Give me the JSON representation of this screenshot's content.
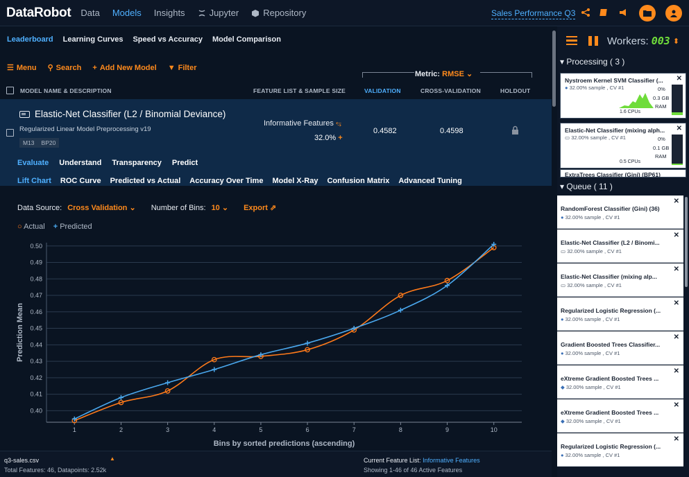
{
  "app": {
    "logo": "DataRobot",
    "project": "Sales Performance Q3"
  },
  "nav": [
    {
      "label": "Data",
      "active": false
    },
    {
      "label": "Models",
      "active": true
    },
    {
      "label": "Insights",
      "active": false
    },
    {
      "label": "Jupyter",
      "active": false
    },
    {
      "label": "Repository",
      "active": false
    }
  ],
  "subtabs": [
    "Leaderboard",
    "Learning Curves",
    "Speed vs Accuracy",
    "Model Comparison"
  ],
  "toolbar": {
    "menu": "Menu",
    "search": "Search",
    "add": "Add New Model",
    "filter": "Filter"
  },
  "metric": {
    "label": "Metric:",
    "value": "RMSE"
  },
  "columns": {
    "name": "MODEL NAME & DESCRIPTION",
    "features": "FEATURE LIST & SAMPLE SIZE",
    "validation": "VALIDATION",
    "cv": "CROSS-VALIDATION",
    "holdout": "HOLDOUT"
  },
  "model": {
    "title": "Elastic-Net Classifier (L2 / Binomial Deviance)",
    "description": "Regularized Linear Model Preprocessing v19",
    "tags": [
      "M13",
      "BP20"
    ],
    "feature_list": "Informative Features",
    "sample_size": "32.0%",
    "validation": "0.4582",
    "cross_validation": "0.4598",
    "tabs": [
      "Evaluate",
      "Understand",
      "Transparency",
      "Predict"
    ]
  },
  "chart_tabs": [
    "Lift Chart",
    "ROC Curve",
    "Predicted vs Actual",
    "Accuracy Over Time",
    "Model X-Ray",
    "Confusion Matrix",
    "Advanced Tuning"
  ],
  "controls": {
    "data_source_label": "Data Source:",
    "data_source_value": "Cross Validation",
    "bins_label": "Number of Bins:",
    "bins_value": "10",
    "export": "Export"
  },
  "legend": {
    "actual": "Actual",
    "predicted": "Predicted"
  },
  "colors": {
    "actual": "#ff7a1a",
    "predicted": "#4aa8ee",
    "accent": "#4fb0ff",
    "orange": "#ff8a1c"
  },
  "chart_data": {
    "type": "line",
    "xlabel": "Bins by sorted predictions (ascending)",
    "ylabel": "Prediction Mean",
    "x": [
      1,
      2,
      3,
      4,
      5,
      6,
      7,
      8,
      9,
      10
    ],
    "xlim": [
      0.4,
      10.6
    ],
    "ylim": [
      0.393,
      0.502
    ],
    "yticks": [
      0.4,
      0.41,
      0.42,
      0.43,
      0.44,
      0.45,
      0.46,
      0.47,
      0.48,
      0.49,
      0.5
    ],
    "series": [
      {
        "name": "Actual",
        "values": [
          0.394,
          0.405,
          0.412,
          0.431,
          0.433,
          0.437,
          0.449,
          0.47,
          0.479,
          0.499
        ]
      },
      {
        "name": "Predicted",
        "values": [
          0.395,
          0.408,
          0.417,
          0.425,
          0.434,
          0.441,
          0.45,
          0.461,
          0.476,
          0.501
        ]
      }
    ]
  },
  "footer": {
    "filename": "q3-sales.csv",
    "totals": "Total Features: 46, Datapoints: 2.52k",
    "feature_list_label": "Current Feature List:",
    "feature_list_value": "Informative Features",
    "showing": "Showing 1-46 of 46 Active Features"
  },
  "workers": {
    "label": "Workers:",
    "count": "003"
  },
  "processing": {
    "header": "Processing ( 3 )",
    "items": [
      {
        "title": "Nystroem Kernel SVM Classifier (...",
        "sample": "32.00% sample , CV #1",
        "cpu_pct": "0%",
        "ram": "0.3 GB",
        "ram_label": "RAM",
        "cpus": "1.6 CPUs",
        "ram_level": 0.1
      },
      {
        "title": "Elastic-Net Classifier (mixing alph...",
        "sample": "32.00% sample , CV #1",
        "cpu_pct": "0%",
        "ram": "0.1 GB",
        "ram_label": "RAM",
        "cpus": "0.5 CPUs",
        "ram_level": 0.05
      },
      {
        "title": "ExtraTrees Classifier (Gini) (BP61)",
        "sample": "",
        "cpu_pct": "",
        "ram": "",
        "ram_label": "",
        "cpus": "",
        "ram_level": 0
      }
    ]
  },
  "queue": {
    "header": "Queue ( 11 )",
    "items": [
      {
        "title": "RandomForest Classifier (Gini) (36)",
        "sample": "32.00% sample , CV #1"
      },
      {
        "title": "Elastic-Net Classifier (L2 / Binomi...",
        "sample": "32.00% sample , CV #1"
      },
      {
        "title": "Elastic-Net Classifier (mixing alp...",
        "sample": "32.00% sample , CV #1"
      },
      {
        "title": "Regularized Logistic Regression (...",
        "sample": "32.00% sample , CV #1"
      },
      {
        "title": "Gradient Boosted Trees Classifier...",
        "sample": "32.00% sample , CV #1"
      },
      {
        "title": "eXtreme Gradient Boosted Trees ...",
        "sample": "32.00% sample , CV #1"
      },
      {
        "title": "eXtreme Gradient Boosted Trees ...",
        "sample": "32.00% sample , CV #1"
      },
      {
        "title": "Regularized Logistic Regression (...",
        "sample": "32.00% sample , CV #1"
      }
    ]
  }
}
